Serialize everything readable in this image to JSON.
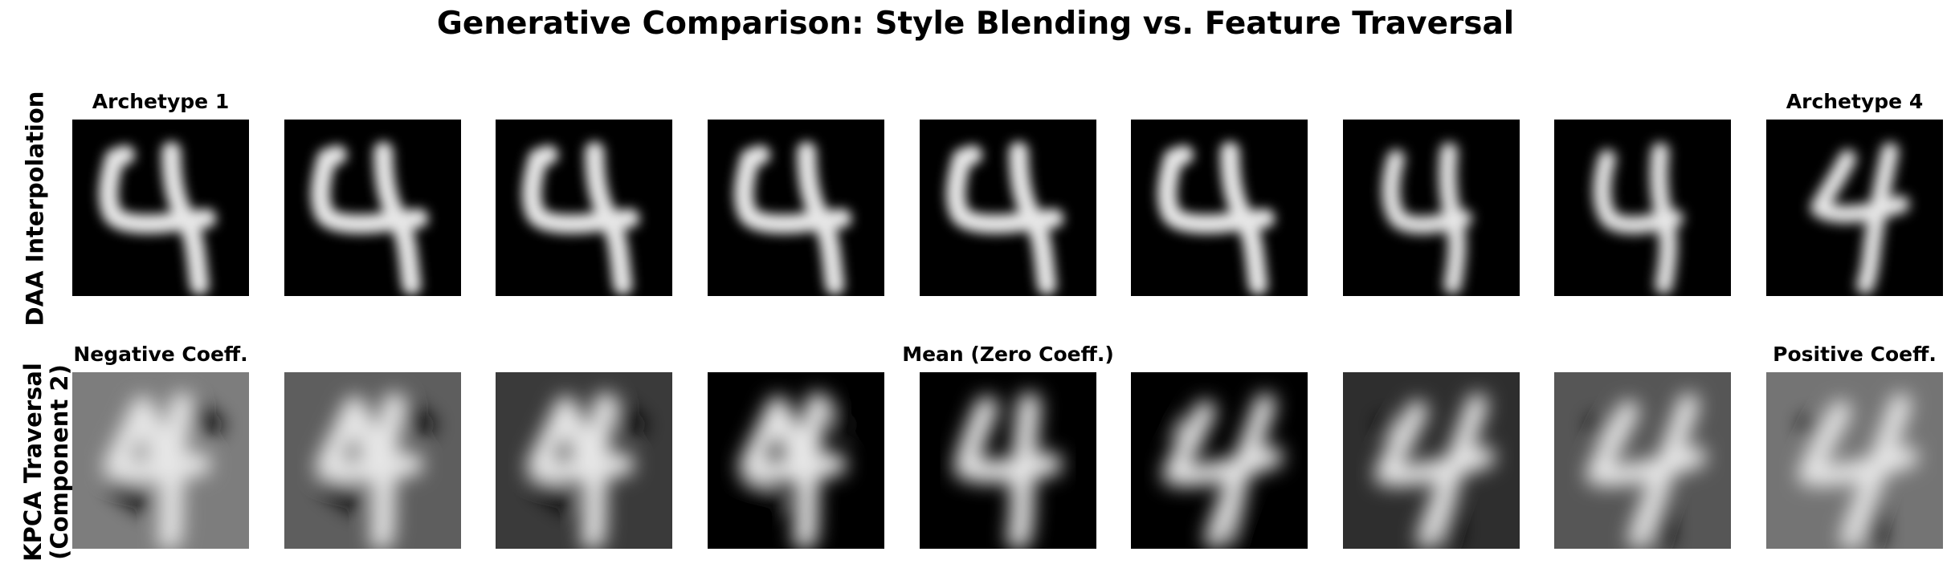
{
  "figure": {
    "title": "Generative Comparison: Style Blending vs. Feature Traversal"
  },
  "rows": [
    {
      "id": "daa",
      "label_lines": [
        "DAA Interpolation"
      ],
      "panels": [
        {
          "title": "Archetype 1",
          "bg": "#000000",
          "glyph": "closed-4-wide"
        },
        {
          "title": "",
          "bg": "#000000",
          "glyph": "closed-4-wide"
        },
        {
          "title": "",
          "bg": "#000000",
          "glyph": "closed-4-wide"
        },
        {
          "title": "",
          "bg": "#000000",
          "glyph": "closed-4-wide"
        },
        {
          "title": "",
          "bg": "#000000",
          "glyph": "closed-4-wide"
        },
        {
          "title": "",
          "bg": "#000000",
          "glyph": "closed-4-wide"
        },
        {
          "title": "",
          "bg": "#000000",
          "glyph": "closed-4-narrow"
        },
        {
          "title": "",
          "bg": "#000000",
          "glyph": "closed-4-narrow"
        },
        {
          "title": "Archetype 4",
          "bg": "#000000",
          "glyph": "open-4-slanted"
        }
      ]
    },
    {
      "id": "kpca",
      "label_lines": [
        "KPCA Traversal",
        "(Component 2)"
      ],
      "panels": [
        {
          "title": "Negative Coeff.",
          "bg": "#7d7d7d",
          "glyph": "blurred-4-upright"
        },
        {
          "title": "",
          "bg": "#5e5e5e",
          "glyph": "blurred-4-upright"
        },
        {
          "title": "",
          "bg": "#3a3a3a",
          "glyph": "blurred-4-upright"
        },
        {
          "title": "",
          "bg": "#000000",
          "glyph": "blurred-4-upright"
        },
        {
          "title": "Mean (Zero Coeff.)",
          "bg": "#000000",
          "glyph": "blurred-4-mean"
        },
        {
          "title": "",
          "bg": "#000000",
          "glyph": "blurred-4-slanted"
        },
        {
          "title": "",
          "bg": "#2e2e2e",
          "glyph": "blurred-4-slanted"
        },
        {
          "title": "",
          "bg": "#565656",
          "glyph": "blurred-4-slanted"
        },
        {
          "title": "Positive Coeff.",
          "bg": "#747474",
          "glyph": "blurred-4-slanted"
        }
      ]
    }
  ]
}
